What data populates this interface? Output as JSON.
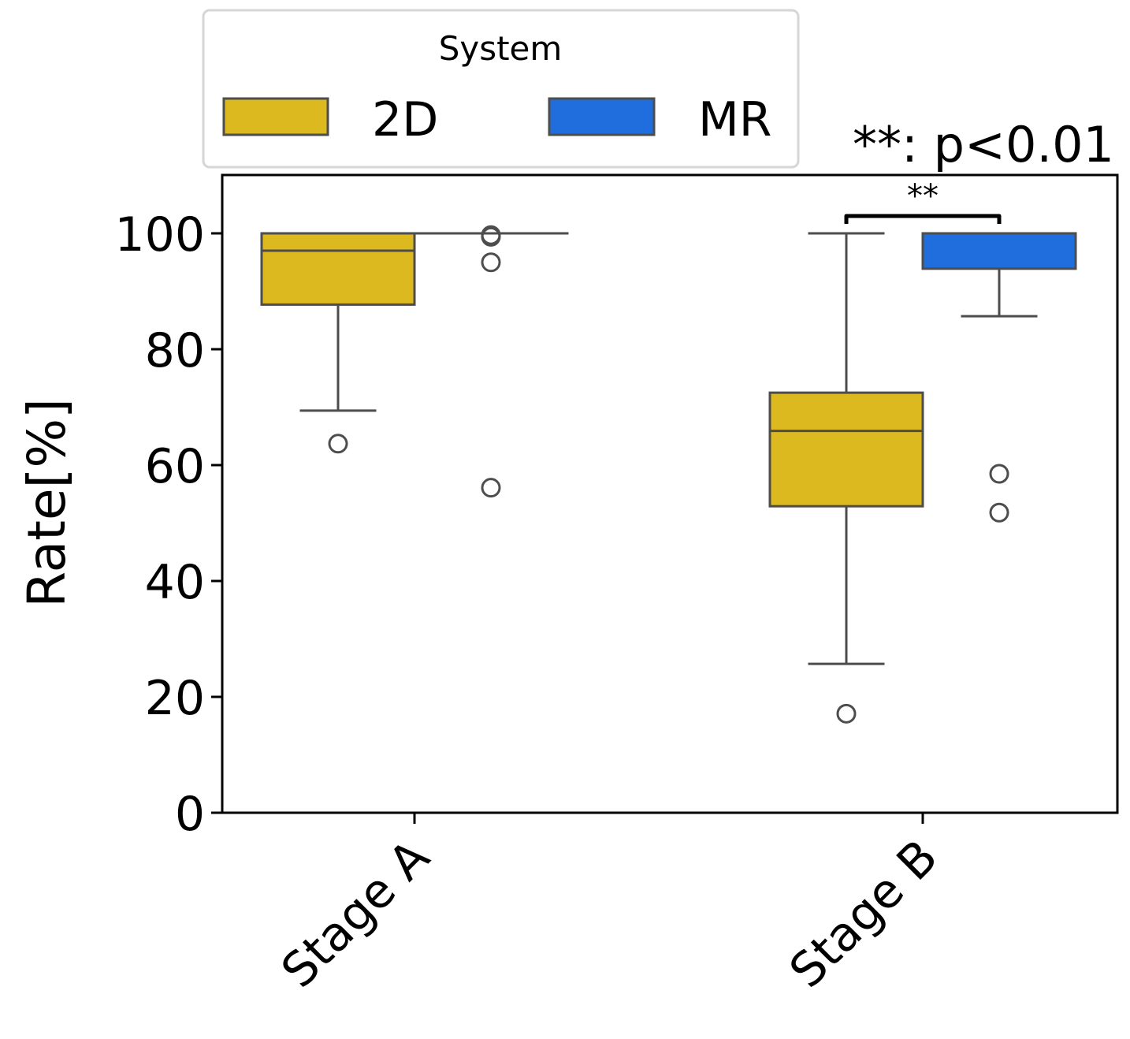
{
  "chart_data": {
    "type": "box",
    "title": "",
    "xlabel": "",
    "ylabel": "Rate[%]",
    "ylim": [
      0,
      110
    ],
    "yticks": [
      0,
      20,
      40,
      60,
      80,
      100
    ],
    "ytick_labels": [
      "0",
      "20",
      "40",
      "60",
      "80",
      "100"
    ],
    "categories": [
      "Stage A",
      "Stage B"
    ],
    "legend": {
      "title": "System",
      "placement": "top-left, above axes",
      "entries": [
        {
          "label": "2D",
          "color": "#DDB920"
        },
        {
          "label": "MR",
          "color": "#206EDD"
        }
      ]
    },
    "series": [
      {
        "name": "2D",
        "color": "#DDB920",
        "boxes": [
          {
            "category": "Stage A",
            "whisker_low": 69.4,
            "q1": 87.7,
            "median": 97.0,
            "q3": 100,
            "whisker_high": 100,
            "outliers": [
              63.7
            ]
          },
          {
            "category": "Stage B",
            "whisker_low": 25.7,
            "q1": 52.9,
            "median": 65.9,
            "q3": 72.5,
            "whisker_high": 100,
            "outliers": [
              17.1
            ]
          }
        ]
      },
      {
        "name": "MR",
        "color": "#206EDD",
        "boxes": [
          {
            "category": "Stage A",
            "whisker_low": 100,
            "q1": 100,
            "median": 100,
            "q3": 100,
            "whisker_high": 100,
            "outliers": [
              99.7,
              99.4,
              95.0,
              56.1
            ]
          },
          {
            "category": "Stage B",
            "whisker_low": 85.7,
            "q1": 93.9,
            "median": 100,
            "q3": 100,
            "whisker_high": 100,
            "outliers": [
              58.5,
              51.8
            ]
          }
        ]
      }
    ],
    "annotations": {
      "significance_note": "**: p<0.01",
      "brackets": [
        {
          "category": "Stage B",
          "between": [
            "2D",
            "MR"
          ],
          "label": "**",
          "y": 103
        }
      ]
    },
    "grid": false,
    "edge_color": "#4D4D4D"
  }
}
